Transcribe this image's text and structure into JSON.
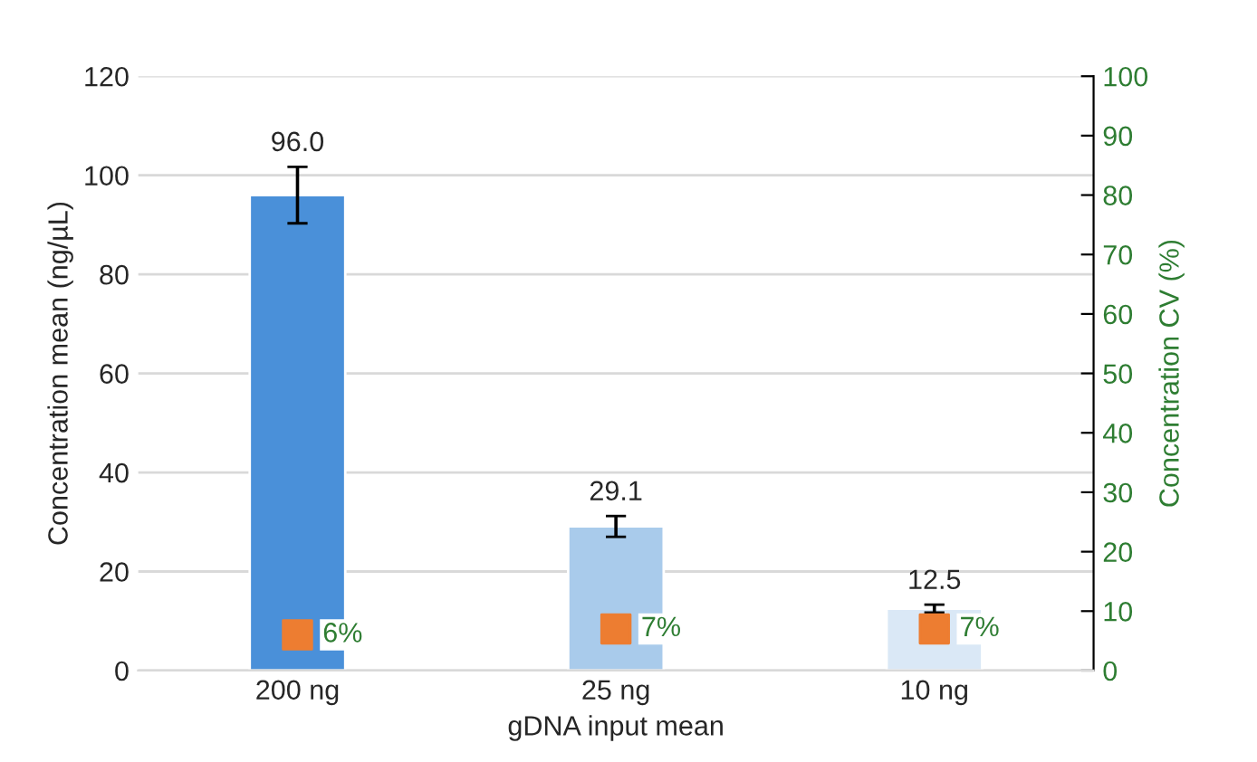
{
  "chart_data": {
    "type": "bar",
    "xlabel": "gDNA input mean",
    "ylabel": "Concentration mean (ng/µL)",
    "y2label": "Concentration CV (%)",
    "categories": [
      "200 ng",
      "25 ng",
      "10 ng"
    ],
    "series": [
      {
        "colors": [
          "#4a90d9",
          "#a9cbeb",
          "#dae8f6"
        ],
        "values": [
          96.0,
          29.1,
          12.5
        ],
        "errors": [
          5.7,
          2.1,
          0.8
        ],
        "value_labels": [
          "96.0",
          "29.1",
          "12.5"
        ]
      },
      {
        "type": "scatter",
        "axis": "y2",
        "color": "#ed7d31",
        "marker": "square",
        "values": [
          6,
          7,
          7
        ],
        "value_labels": [
          "6%",
          "7%",
          "7%"
        ]
      }
    ],
    "ylim": [
      0,
      120
    ],
    "yticks": [
      0,
      20,
      40,
      60,
      80,
      100,
      120
    ],
    "y2lim": [
      0,
      100
    ],
    "y2ticks": [
      0,
      10,
      20,
      30,
      40,
      50,
      60,
      70,
      80,
      90,
      100
    ],
    "grid": "y",
    "legend": false
  }
}
